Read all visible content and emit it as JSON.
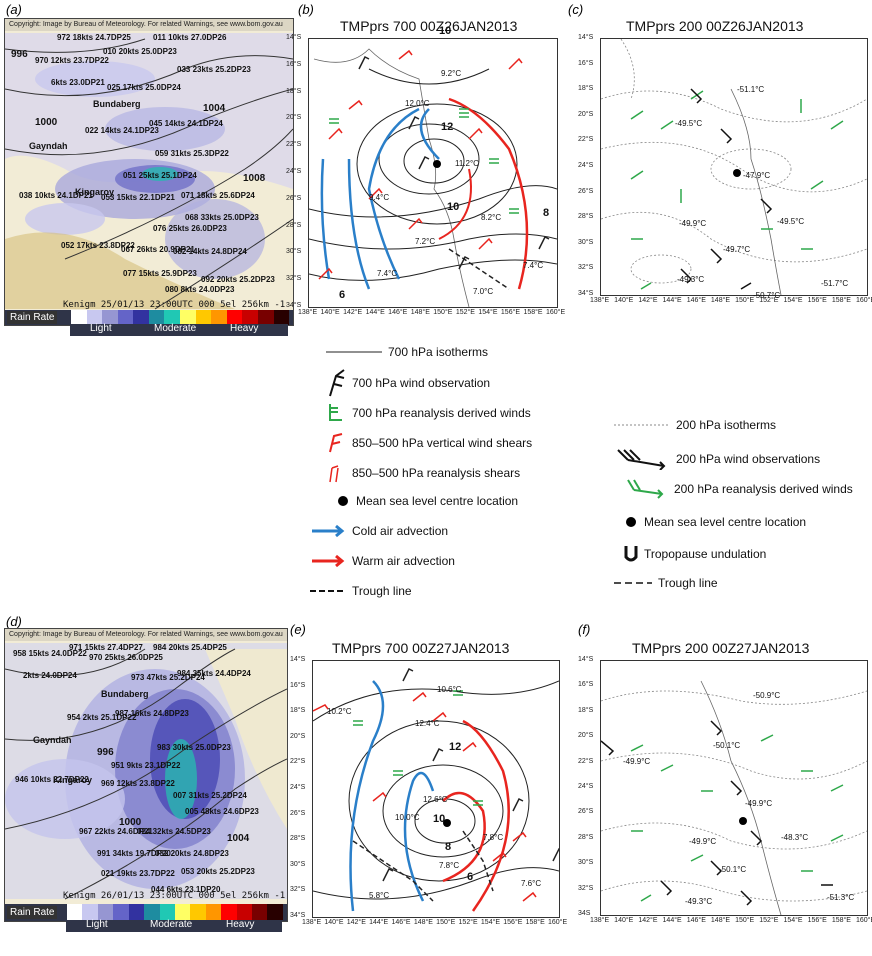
{
  "panels": {
    "a": {
      "letter": "(a)"
    },
    "b": {
      "letter": "(b)",
      "title": "TMPprs 700 00Z26JAN2013"
    },
    "c": {
      "letter": "(c)",
      "title": "TMPprs 200 00Z26JAN2013"
    },
    "d": {
      "letter": "(d)"
    },
    "e": {
      "letter": "(e)",
      "title": "TMPprs 700 00Z27JAN2013"
    },
    "f": {
      "letter": "(f)",
      "title": "TMPprs 200 00Z27JAN2013"
    }
  },
  "radar_common": {
    "header": "Copyright: Image by Bureau of Meteorology. For related Warnings, see www.bom.gov.au",
    "rain_rate": "Rain Rate",
    "scale": [
      "Light",
      "Moderate",
      "Heavy"
    ],
    "colors": [
      "#ffffff",
      "#c8c8f0",
      "#9696d2",
      "#6464c8",
      "#3232a0",
      "#1e8ca0",
      "#20c8b4",
      "#ffff64",
      "#ffc800",
      "#ff9600",
      "#ff0000",
      "#c80000",
      "#780000",
      "#280000"
    ]
  },
  "radar_a": {
    "stamp": "Kenigm  25/01/13 23:00UTC 000 5el 256km -1",
    "isobars": [
      "996",
      "1000",
      "1004",
      "1008"
    ],
    "cities": [
      "Bundaberg",
      "Gayndah",
      "Kingaroy"
    ],
    "obs": [
      "972 18kts 24.7DP25",
      "970 12kts 23.7DP22",
      "6kts 23.0DP21",
      "010 20kts 25.0DP23",
      "011 10kts 27.0DP26",
      "033 23kts 25.2DP23",
      "025 17kts 25.0DP24",
      "045 14kts 24.1DP24",
      "022 14kts 24.1DP23",
      "059 31kts 25.3DP22",
      "051 25kts 25.1DP24",
      "053 15kts 22.1DP21",
      "071 18kts 25.6DP24",
      "038 10kts 24.1DP21",
      "068 33kts 25.0DP23",
      "076 25kts 26.0DP23",
      "052 17kts 23.8DP22",
      "067 26kts 20.9DP21",
      "082 14kts 24.8DP24",
      "077 15kts 25.9DP23",
      "092 20kts 25.2DP23",
      "080 8kts 24.0DP23"
    ]
  },
  "radar_d": {
    "stamp": "Kenigm  26/01/13 23:00UTC 000 5el 256km -1",
    "isobars": [
      "996",
      "1000",
      "1004"
    ],
    "cities": [
      "Bundaberg",
      "Gayndah",
      "Kingaroy"
    ],
    "obs": [
      "958 15kts 24.0DP22",
      "971 15kts 27.4DP27",
      "970 25kts 26.0DP25",
      "984 20kts 25.4DP25",
      "2kts 24.0DP24",
      "973 47kts 25.2DP24",
      "984 35kts 24.4DP24",
      "954 2kts 25.1DP22",
      "987 16kts 24.8DP23",
      "983 30kts 25.0DP23",
      "951 9kts 23.1DP22",
      "946 10kts 22.7DP22",
      "969 12kts 23.8DP22",
      "007 31kts 25.2DP24",
      "005 48kts 24.6DP23",
      "967 22kts 24.6DP21",
      "024 32kts 24.5DP23",
      "991 34kts 19.7DP20",
      "032 20kts 24.8DP23",
      "021 19kts 23.7DP22",
      "053 20kts 25.2DP23",
      "044 6kts 23.1DP20"
    ]
  },
  "map_b": {
    "lat": [
      "14°S",
      "16°S",
      "18°S",
      "20°S",
      "22°S",
      "24°S",
      "26°S",
      "28°S",
      "30°S",
      "32°S",
      "34°S"
    ],
    "lon": [
      "138°E",
      "140°E",
      "142°E",
      "144°E",
      "146°E",
      "148°E",
      "150°E",
      "152°E",
      "154°E",
      "156°E",
      "158°E",
      "160°E"
    ],
    "contour_labels": [
      "10",
      "12",
      "10",
      "8",
      "6"
    ],
    "temps": [
      "9.2°C",
      "12.0°C",
      "11.2°C",
      "9.4°C",
      "8.2°C",
      "7.2°C",
      "7.4°C",
      "7.4°C",
      "7.0°C"
    ]
  },
  "map_c": {
    "lat": [
      "14°S",
      "16°S",
      "18°S",
      "20°S",
      "22°S",
      "24°S",
      "26°S",
      "28°S",
      "30°S",
      "32°S",
      "34°S"
    ],
    "lon": [
      "138°E",
      "140°E",
      "142°E",
      "144°E",
      "146°E",
      "148°E",
      "150°E",
      "152°E",
      "154°E",
      "156°E",
      "158°E",
      "160°E"
    ],
    "temps": [
      "-51.1°C",
      "-49.5°C",
      "-47.9°C",
      "-49.9°C",
      "-49.5°C",
      "-49.7°C",
      "-49.3°C",
      "-50.7°C",
      "-51.7°C"
    ]
  },
  "map_e": {
    "lat": [
      "14°S",
      "16°S",
      "18°S",
      "20°S",
      "22°S",
      "24°S",
      "26°S",
      "28°S",
      "30°S",
      "32°S",
      "34°S"
    ],
    "lon": [
      "138°E",
      "140°E",
      "142°E",
      "144°E",
      "146°E",
      "148°E",
      "150°E",
      "152°E",
      "154°E",
      "156°E",
      "158°E",
      "160°E"
    ],
    "contour_labels": [
      "12",
      "10",
      "8",
      "6"
    ],
    "temps": [
      "10.6°C",
      "10.2°C",
      "12.4°C",
      "12.6°C",
      "10.0°C",
      "7.8°C",
      "7.8°C",
      "5.8°C",
      "7.6°C"
    ]
  },
  "map_f": {
    "lat": [
      "14°S",
      "16°S",
      "18°S",
      "20°S",
      "22°S",
      "24°S",
      "26°S",
      "28°S",
      "30°S",
      "32°S",
      "34S"
    ],
    "lon": [
      "138°E",
      "140°E",
      "142°E",
      "144°E",
      "146°E",
      "148°E",
      "150°E",
      "152°E",
      "154°E",
      "156°E",
      "158°E",
      "160°E"
    ],
    "temps": [
      "-50.9°C",
      "-50.1°C",
      "-49.9°C",
      "-49.9°C",
      "-49.9°C",
      "-48.3°C",
      "-50.1°C",
      "-49.3°C",
      "-51.3°C"
    ]
  },
  "legend_700": [
    "700 hPa isotherms",
    "700 hPa wind observation",
    "700 hPa reanalysis derived winds",
    "850–500 hPa vertical wind shears",
    "850–500 hPa reanalysis shears",
    "Mean sea level centre location",
    "Cold air advection",
    "Warm air advection",
    "Trough line"
  ],
  "legend_200": [
    "200 hPa isotherms",
    "200 hPa wind observations",
    "200 hPa reanalysis derived winds",
    "Mean sea level centre location",
    "Tropopause undulation",
    "Trough line"
  ],
  "colors": {
    "cold": "#2a7fc9",
    "warm": "#e8251f",
    "green": "#2ea84a",
    "red_shear": "#e8251f"
  }
}
